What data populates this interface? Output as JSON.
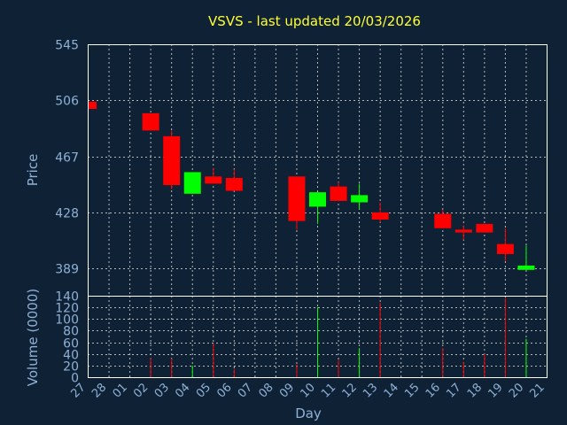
{
  "chart_data": [
    {
      "type": "candlestick",
      "title": "VSVS - last updated 20/03/2026",
      "ylabel": "Price",
      "ylim": [
        370,
        545
      ],
      "yticks": [
        389,
        428,
        467,
        506,
        545
      ],
      "x_tick_labels": [
        "27",
        "28",
        "01",
        "02",
        "03",
        "04",
        "05",
        "06",
        "07",
        "08",
        "09",
        "10",
        "11",
        "12",
        "13",
        "14",
        "15",
        "16",
        "17",
        "18",
        "19",
        "20",
        "21"
      ],
      "grid": true,
      "candles": [
        {
          "day": "27",
          "open": 505,
          "close": 500,
          "high": 505,
          "low": 500
        },
        {
          "day": "02",
          "open": 497,
          "close": 485,
          "high": 497,
          "low": 485
        },
        {
          "day": "03",
          "open": 481,
          "close": 447,
          "high": 485,
          "low": 444
        },
        {
          "day": "04",
          "open": 441,
          "close": 456,
          "high": 456,
          "low": 441
        },
        {
          "day": "05",
          "open": 453,
          "close": 448,
          "high": 459,
          "low": 448
        },
        {
          "day": "06",
          "open": 452,
          "close": 443,
          "high": 458,
          "low": 443
        },
        {
          "day": "09",
          "open": 453,
          "close": 422,
          "high": 453,
          "low": 416
        },
        {
          "day": "10",
          "open": 432,
          "close": 442,
          "high": 442,
          "low": 420
        },
        {
          "day": "11",
          "open": 446,
          "close": 436,
          "high": 449,
          "low": 436
        },
        {
          "day": "12",
          "open": 435,
          "close": 440,
          "high": 448,
          "low": 430
        },
        {
          "day": "13",
          "open": 428,
          "close": 423,
          "high": 435,
          "low": 421
        },
        {
          "day": "16",
          "open": 427,
          "close": 417,
          "high": 430,
          "low": 417
        },
        {
          "day": "17",
          "open": 416,
          "close": 414,
          "high": 419,
          "low": 409
        },
        {
          "day": "18",
          "open": 420,
          "close": 414,
          "high": 420,
          "low": 414
        },
        {
          "day": "19",
          "open": 406,
          "close": 399,
          "high": 417,
          "low": 394
        },
        {
          "day": "20",
          "open": 388,
          "close": 391,
          "high": 405,
          "low": 388
        }
      ],
      "colors": {
        "up": "#00ff00",
        "down": "#ff0000",
        "background": "#0f2135",
        "title": "#ffff33",
        "text": "#8fb1d6"
      }
    },
    {
      "type": "bar",
      "ylabel": "Volume (0000)",
      "xlabel": "Day",
      "ylim": [
        0,
        140
      ],
      "yticks": [
        0,
        20,
        40,
        60,
        80,
        100,
        120,
        140
      ],
      "grid": true,
      "bars": [
        {
          "day": "02",
          "value": 33,
          "direction": "down"
        },
        {
          "day": "03",
          "value": 32,
          "direction": "down"
        },
        {
          "day": "04",
          "value": 20,
          "direction": "up"
        },
        {
          "day": "05",
          "value": 58,
          "direction": "down"
        },
        {
          "day": "06",
          "value": 14,
          "direction": "down"
        },
        {
          "day": "09",
          "value": 22,
          "direction": "down"
        },
        {
          "day": "10",
          "value": 120,
          "direction": "up"
        },
        {
          "day": "11",
          "value": 30,
          "direction": "down"
        },
        {
          "day": "12",
          "value": 50,
          "direction": "up"
        },
        {
          "day": "13",
          "value": 128,
          "direction": "down"
        },
        {
          "day": "16",
          "value": 50,
          "direction": "down"
        },
        {
          "day": "17",
          "value": 26,
          "direction": "down"
        },
        {
          "day": "18",
          "value": 40,
          "direction": "down"
        },
        {
          "day": "19",
          "value": 136,
          "direction": "down"
        },
        {
          "day": "20",
          "value": 66,
          "direction": "up"
        }
      ]
    }
  ]
}
